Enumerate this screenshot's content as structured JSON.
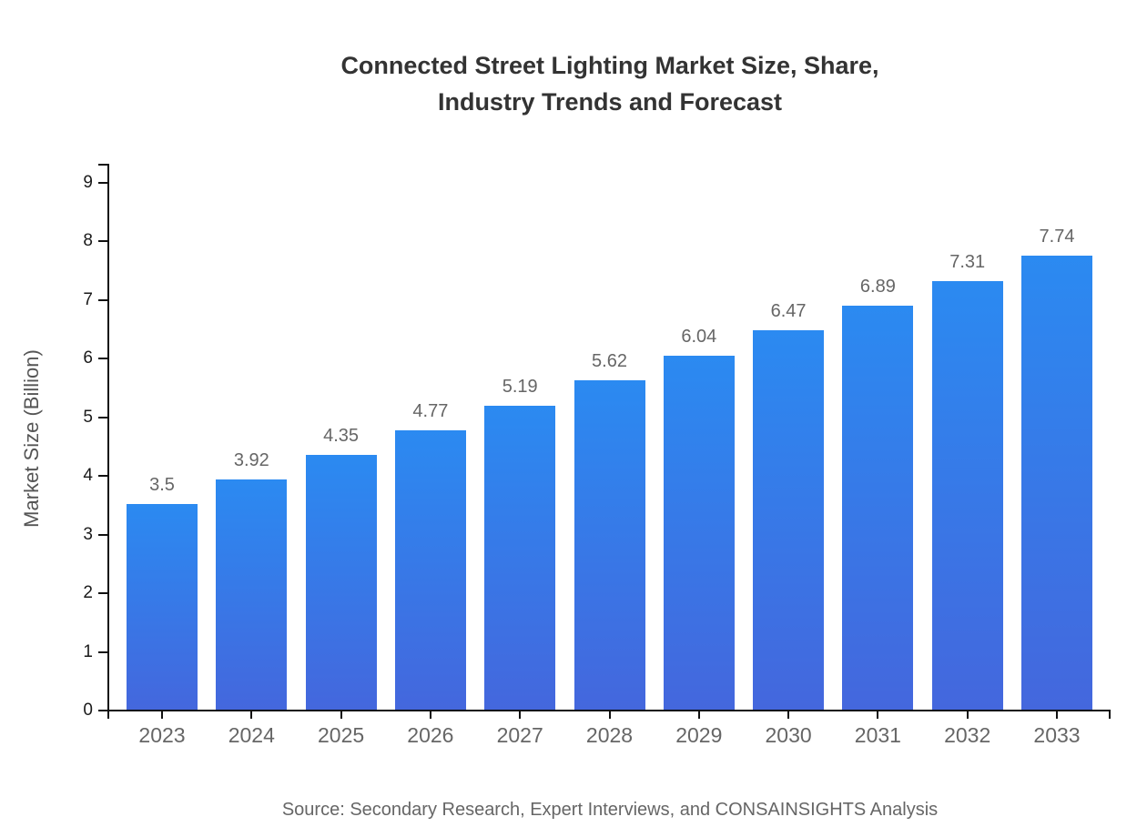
{
  "title": {
    "line1": "Connected Street Lighting Market Size, Share,",
    "line2": "Industry Trends and Forecast"
  },
  "source": "Source: Secondary Research, Expert Interviews, and CONSAINSIGHTS Analysis",
  "chart_data": {
    "type": "bar",
    "title": "Connected Street Lighting Market Size, Share, Industry Trends and Forecast",
    "categories": [
      "2023",
      "2024",
      "2025",
      "2026",
      "2027",
      "2028",
      "2029",
      "2030",
      "2031",
      "2032",
      "2033"
    ],
    "values": [
      3.5,
      3.92,
      4.35,
      4.77,
      5.19,
      5.62,
      6.04,
      6.47,
      6.89,
      7.31,
      7.74
    ],
    "data_labels": [
      "3.5",
      "3.92",
      "4.35",
      "4.77",
      "5.19",
      "5.62",
      "6.04",
      "6.47",
      "6.89",
      "7.31",
      "7.74"
    ],
    "xlabel": "",
    "ylabel": "Market Size (Billion)",
    "ylim": [
      0,
      9
    ],
    "ytick_step": 1,
    "yticks": [
      0,
      1,
      2,
      3,
      4,
      5,
      6,
      7,
      8,
      9
    ],
    "grid": false,
    "legend": false,
    "background": "#ffffff"
  },
  "colors": {
    "bar_gradient_top": "#2b8af1",
    "bar_gradient_bottom": "#4467dd",
    "axis": "#111111",
    "y_tick_label": "#1a1a1a",
    "x_tick_label": "#666666",
    "value_label": "#666666",
    "title": "#333333",
    "ylabel": "#555555",
    "source": "#666666"
  }
}
